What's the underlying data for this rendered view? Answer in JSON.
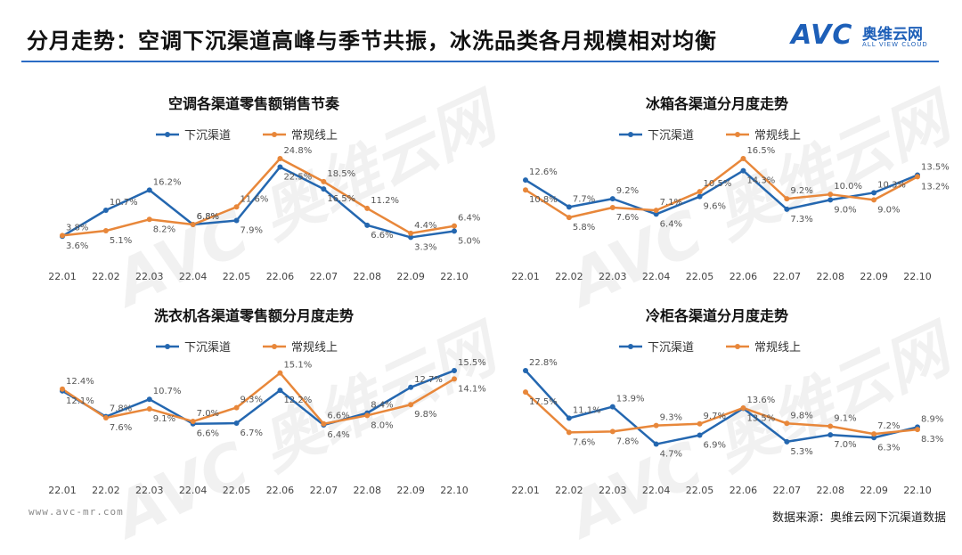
{
  "page": {
    "title": "分月走势：空调下沉渠道高峰与季节共振，冰洗品类各月规模相对均衡",
    "logo_text": "AVC",
    "logo_cn": "奥维云网",
    "logo_en": "ALL VIEW CLOUD",
    "watermark": "AVC 奥维云网",
    "footer_url": "www.avc-mr.com",
    "footer_source": "数据来源：奥维云网下沉渠道数据"
  },
  "colors": {
    "blue": "#2467b0",
    "orange": "#e8873a",
    "rule": "#2a6bc4"
  },
  "chart_data": [
    {
      "type": "line",
      "title": "空调各渠道零售额销售节奏",
      "categories": [
        "22.01",
        "22.02",
        "22.03",
        "22.04",
        "22.05",
        "22.06",
        "22.07",
        "22.08",
        "22.09",
        "22.10"
      ],
      "series": [
        {
          "name": "下沉渠道",
          "values": [
            3.6,
            10.7,
            16.2,
            6.8,
            7.9,
            22.5,
            16.5,
            6.6,
            3.3,
            5.0
          ]
        },
        {
          "name": "常规线上",
          "values": [
            3.8,
            5.1,
            8.2,
            6.8,
            11.6,
            24.8,
            18.5,
            11.2,
            4.4,
            6.4
          ]
        }
      ],
      "legend": "top"
    },
    {
      "type": "line",
      "title": "冰箱各渠道分月度走势",
      "categories": [
        "22.01",
        "22.02",
        "22.03",
        "22.04",
        "22.05",
        "22.06",
        "22.07",
        "22.08",
        "22.09",
        "22.10"
      ],
      "series": [
        {
          "name": "下沉渠道",
          "values": [
            12.6,
            7.7,
            9.2,
            6.4,
            9.6,
            14.3,
            7.3,
            9.0,
            10.3,
            13.5
          ]
        },
        {
          "name": "常规线上",
          "values": [
            10.8,
            5.8,
            7.6,
            7.1,
            10.5,
            16.5,
            9.2,
            10.0,
            9.0,
            13.2
          ]
        }
      ],
      "legend": "top"
    },
    {
      "type": "line",
      "title": "洗衣机各渠道零售额分月度走势",
      "categories": [
        "22.01",
        "22.02",
        "22.03",
        "22.04",
        "22.05",
        "22.06",
        "22.07",
        "22.08",
        "22.09",
        "22.10"
      ],
      "series": [
        {
          "name": "下沉渠道",
          "values": [
            12.1,
            7.8,
            10.7,
            6.6,
            6.7,
            12.2,
            6.4,
            8.4,
            12.7,
            15.5
          ]
        },
        {
          "name": "常规线上",
          "values": [
            12.4,
            7.6,
            9.1,
            7.0,
            9.3,
            15.1,
            6.6,
            8.0,
            9.8,
            14.1
          ]
        }
      ],
      "legend": "top"
    },
    {
      "type": "line",
      "title": "冷柜各渠道分月度走势",
      "categories": [
        "22.01",
        "22.02",
        "22.03",
        "22.04",
        "22.05",
        "22.06",
        "22.07",
        "22.08",
        "22.09",
        "22.10"
      ],
      "series": [
        {
          "name": "下沉渠道",
          "values": [
            22.8,
            11.1,
            13.9,
            4.7,
            6.9,
            13.5,
            5.3,
            7.0,
            6.3,
            8.9
          ]
        },
        {
          "name": "常规线上",
          "values": [
            17.5,
            7.6,
            7.8,
            9.3,
            9.7,
            13.6,
            9.8,
            9.1,
            7.2,
            8.3
          ]
        }
      ],
      "legend": "top"
    }
  ]
}
